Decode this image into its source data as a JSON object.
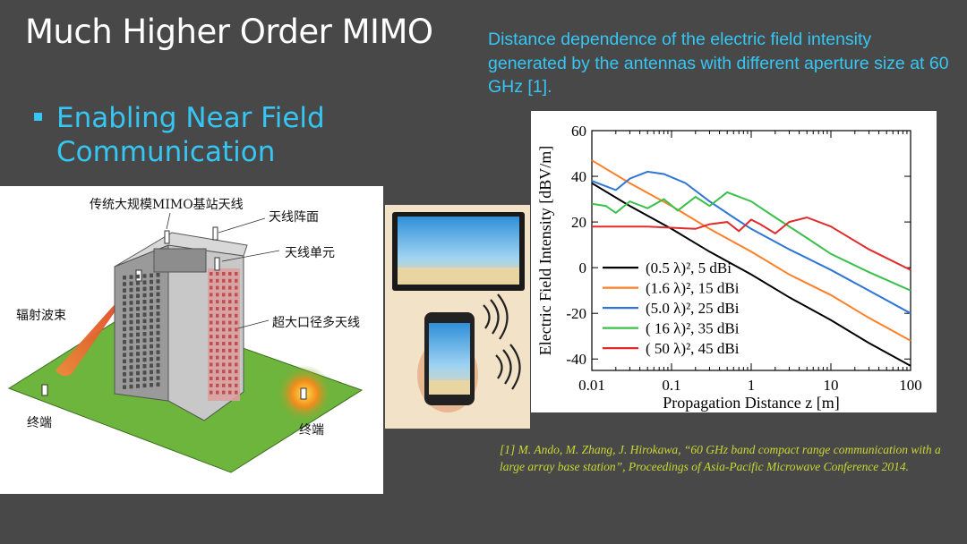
{
  "slide": {
    "title": "Much Higher Order MIMO",
    "caption": "Distance dependence of the electric field intensity generated by the antennas with different aperture size at 60 GHz [1].",
    "bullet": "Enabling Near Field Communication",
    "reference": "[1] M. Ando, M. Zhang, J. Hirokawa, “60 GHz band compact range communication with a large array base station”, Proceedings of Asia-Pacific Microwave Conference 2014."
  },
  "diagram": {
    "label_base_station": "传统大规模MIMO基站天线",
    "label_array_face": "天线阵面",
    "label_element": "天线单元",
    "label_beam": "辐射波束",
    "label_large_aperture": "超大口径多天线",
    "label_terminal_1": "终端",
    "label_terminal_2": "终端"
  },
  "colors": {
    "accent": "#36c6f4",
    "background": "#484848",
    "reference": "#c8d832"
  },
  "chart_data": {
    "type": "line",
    "title": "",
    "xlabel": "Propagation Distance z [m]",
    "ylabel": "Electric Field Intensity [dBV/m]",
    "xscale": "log",
    "xlim": [
      0.01,
      100
    ],
    "ylim": [
      -45,
      60
    ],
    "xticks": [
      "0.01",
      "0.1",
      "1",
      "10",
      "100"
    ],
    "yticks": [
      "60",
      "40",
      "20",
      "0",
      "-20",
      "-40"
    ],
    "legend_position": "bottom-left",
    "series": [
      {
        "name": "(0.5 λ)², 5 dBi",
        "color": "#000000",
        "points": [
          [
            0.01,
            37
          ],
          [
            0.03,
            27
          ],
          [
            0.1,
            17
          ],
          [
            0.3,
            7
          ],
          [
            1,
            -3
          ],
          [
            3,
            -13
          ],
          [
            10,
            -23
          ],
          [
            30,
            -33
          ],
          [
            100,
            -43
          ]
        ]
      },
      {
        "name": "(1.6 λ)², 15 dBi",
        "color": "#ff7f27",
        "points": [
          [
            0.01,
            47
          ],
          [
            0.03,
            37
          ],
          [
            0.1,
            27
          ],
          [
            0.3,
            17
          ],
          [
            1,
            7
          ],
          [
            3,
            -3
          ],
          [
            10,
            -12
          ],
          [
            30,
            -22
          ],
          [
            100,
            -32
          ]
        ]
      },
      {
        "name": "(5.0 λ)², 25 dBi",
        "color": "#2e75d6",
        "points": [
          [
            0.01,
            38
          ],
          [
            0.02,
            34
          ],
          [
            0.03,
            39
          ],
          [
            0.05,
            42
          ],
          [
            0.08,
            41
          ],
          [
            0.15,
            37
          ],
          [
            0.3,
            29
          ],
          [
            0.6,
            22
          ],
          [
            1,
            17
          ],
          [
            3,
            8
          ],
          [
            10,
            -1
          ],
          [
            30,
            -10
          ],
          [
            100,
            -20
          ]
        ]
      },
      {
        "name": "( 16 λ)², 35 dBi",
        "color": "#38c04a",
        "points": [
          [
            0.01,
            28
          ],
          [
            0.015,
            27
          ],
          [
            0.02,
            24
          ],
          [
            0.03,
            29
          ],
          [
            0.05,
            26
          ],
          [
            0.08,
            30
          ],
          [
            0.12,
            25
          ],
          [
            0.2,
            31
          ],
          [
            0.3,
            27
          ],
          [
            0.5,
            33
          ],
          [
            1,
            29
          ],
          [
            2,
            22
          ],
          [
            5,
            13
          ],
          [
            10,
            6
          ],
          [
            30,
            -2
          ],
          [
            100,
            -10
          ]
        ]
      },
      {
        "name": "( 50 λ)², 45 dBi",
        "color": "#e02c2c",
        "points": [
          [
            0.01,
            18
          ],
          [
            0.05,
            18
          ],
          [
            0.1,
            17.5
          ],
          [
            0.2,
            17
          ],
          [
            0.3,
            19
          ],
          [
            0.5,
            20
          ],
          [
            0.7,
            16
          ],
          [
            1,
            21
          ],
          [
            1.3,
            19
          ],
          [
            2,
            15
          ],
          [
            3,
            20
          ],
          [
            5,
            22
          ],
          [
            10,
            18
          ],
          [
            30,
            8
          ],
          [
            100,
            -1
          ]
        ]
      }
    ]
  }
}
